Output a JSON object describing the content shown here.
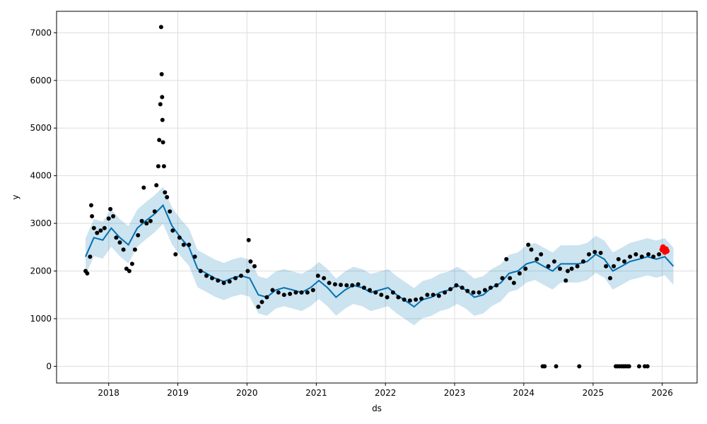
{
  "chart_data": {
    "type": "line",
    "xlabel": "ds",
    "ylabel": "y",
    "x_axis": {
      "type": "date",
      "range": [
        "2017-04-01",
        "2026-07-04"
      ]
    },
    "y_axis": {
      "range": [
        -350,
        7450
      ]
    },
    "grid": true,
    "x_ticks": [
      "2018",
      "2019",
      "2020",
      "2021",
      "2022",
      "2023",
      "2024",
      "2025",
      "2026"
    ],
    "y_ticks": [
      "0",
      "1000",
      "2000",
      "3000",
      "4000",
      "5000",
      "6000",
      "7000"
    ],
    "colors": {
      "observed": "#000000",
      "forecast": "#0072B2",
      "interval_fill": "#0072B2",
      "recent_points": "#FF0000",
      "grid": "#dddddd"
    },
    "series": [
      {
        "role": "forecast_yhat",
        "points": [
          [
            "2017-09-01",
            2300
          ],
          [
            "2017-10-15",
            2700
          ],
          [
            "2017-12-01",
            2650
          ],
          [
            "2018-01-15",
            2900
          ],
          [
            "2018-03-01",
            2700
          ],
          [
            "2018-04-15",
            2550
          ],
          [
            "2018-06-01",
            2900
          ],
          [
            "2018-07-15",
            3050
          ],
          [
            "2018-09-01",
            3200
          ],
          [
            "2018-10-15",
            3380
          ],
          [
            "2018-12-01",
            2950
          ],
          [
            "2019-01-15",
            2700
          ],
          [
            "2019-03-01",
            2500
          ],
          [
            "2019-04-15",
            2050
          ],
          [
            "2019-06-01",
            1950
          ],
          [
            "2019-07-15",
            1850
          ],
          [
            "2019-09-01",
            1780
          ],
          [
            "2019-10-15",
            1850
          ],
          [
            "2019-12-01",
            1900
          ],
          [
            "2020-01-15",
            1850
          ],
          [
            "2020-03-01",
            1500
          ],
          [
            "2020-04-15",
            1450
          ],
          [
            "2020-06-01",
            1600
          ],
          [
            "2020-07-15",
            1650
          ],
          [
            "2020-09-01",
            1600
          ],
          [
            "2020-10-15",
            1550
          ],
          [
            "2020-12-01",
            1650
          ],
          [
            "2021-01-15",
            1800
          ],
          [
            "2021-03-01",
            1650
          ],
          [
            "2021-04-15",
            1450
          ],
          [
            "2021-06-01",
            1600
          ],
          [
            "2021-07-15",
            1700
          ],
          [
            "2021-09-01",
            1650
          ],
          [
            "2021-10-15",
            1550
          ],
          [
            "2021-12-01",
            1600
          ],
          [
            "2022-01-15",
            1650
          ],
          [
            "2022-03-01",
            1500
          ],
          [
            "2022-04-15",
            1380
          ],
          [
            "2022-06-01",
            1250
          ],
          [
            "2022-07-15",
            1400
          ],
          [
            "2022-09-01",
            1450
          ],
          [
            "2022-10-15",
            1550
          ],
          [
            "2022-12-01",
            1600
          ],
          [
            "2023-01-15",
            1700
          ],
          [
            "2023-03-01",
            1600
          ],
          [
            "2023-04-15",
            1450
          ],
          [
            "2023-06-01",
            1500
          ],
          [
            "2023-07-15",
            1650
          ],
          [
            "2023-09-01",
            1750
          ],
          [
            "2023-10-15",
            1950
          ],
          [
            "2023-12-01",
            2000
          ],
          [
            "2024-01-15",
            2150
          ],
          [
            "2024-03-01",
            2200
          ],
          [
            "2024-04-15",
            2100
          ],
          [
            "2024-06-01",
            2000
          ],
          [
            "2024-07-15",
            2150
          ],
          [
            "2024-09-01",
            2150
          ],
          [
            "2024-10-15",
            2150
          ],
          [
            "2024-12-01",
            2200
          ],
          [
            "2025-01-15",
            2350
          ],
          [
            "2025-03-01",
            2250
          ],
          [
            "2025-04-15",
            2000
          ],
          [
            "2025-06-01",
            2100
          ],
          [
            "2025-07-15",
            2200
          ],
          [
            "2025-09-01",
            2250
          ],
          [
            "2025-10-15",
            2300
          ],
          [
            "2025-12-01",
            2250
          ],
          [
            "2026-01-15",
            2300
          ],
          [
            "2026-03-01",
            2100
          ]
        ]
      },
      {
        "role": "uncertainty_interval",
        "offsets_below_and_above_yhat": 390
      },
      {
        "role": "observed",
        "points": [
          [
            "2017-09-01",
            2000
          ],
          [
            "2017-09-10",
            1950
          ],
          [
            "2017-09-25",
            2300
          ],
          [
            "2017-10-01",
            3380
          ],
          [
            "2017-10-05",
            3150
          ],
          [
            "2017-10-15",
            2900
          ],
          [
            "2017-11-01",
            2800
          ],
          [
            "2017-11-20",
            2850
          ],
          [
            "2017-12-10",
            2900
          ],
          [
            "2018-01-01",
            3100
          ],
          [
            "2018-01-10",
            3300
          ],
          [
            "2018-01-25",
            3150
          ],
          [
            "2018-02-10",
            2700
          ],
          [
            "2018-03-01",
            2600
          ],
          [
            "2018-03-20",
            2450
          ],
          [
            "2018-04-05",
            2050
          ],
          [
            "2018-04-20",
            2000
          ],
          [
            "2018-05-05",
            2150
          ],
          [
            "2018-05-20",
            2450
          ],
          [
            "2018-06-05",
            2750
          ],
          [
            "2018-06-25",
            3050
          ],
          [
            "2018-07-05",
            3750
          ],
          [
            "2018-07-20",
            3000
          ],
          [
            "2018-08-10",
            3050
          ],
          [
            "2018-09-01",
            3250
          ],
          [
            "2018-09-10",
            3800
          ],
          [
            "2018-09-20",
            4200
          ],
          [
            "2018-09-25",
            4750
          ],
          [
            "2018-10-01",
            5500
          ],
          [
            "2018-10-05",
            7120
          ],
          [
            "2018-10-08",
            6130
          ],
          [
            "2018-10-10",
            5650
          ],
          [
            "2018-10-12",
            5170
          ],
          [
            "2018-10-15",
            4700
          ],
          [
            "2018-10-20",
            4200
          ],
          [
            "2018-10-25",
            3650
          ],
          [
            "2018-11-05",
            3550
          ],
          [
            "2018-11-20",
            3250
          ],
          [
            "2018-12-05",
            2850
          ],
          [
            "2018-12-20",
            2350
          ],
          [
            "2019-01-10",
            2700
          ],
          [
            "2019-02-01",
            2550
          ],
          [
            "2019-03-01",
            2550
          ],
          [
            "2019-04-01",
            2300
          ],
          [
            "2019-05-01",
            2000
          ],
          [
            "2019-06-01",
            1900
          ],
          [
            "2019-07-01",
            1850
          ],
          [
            "2019-08-01",
            1800
          ],
          [
            "2019-09-01",
            1750
          ],
          [
            "2019-10-01",
            1780
          ],
          [
            "2019-11-01",
            1850
          ],
          [
            "2019-12-01",
            1900
          ],
          [
            "2020-01-05",
            2000
          ],
          [
            "2020-01-10",
            2650
          ],
          [
            "2020-01-20",
            2200
          ],
          [
            "2020-02-10",
            2100
          ],
          [
            "2020-03-01",
            1250
          ],
          [
            "2020-03-20",
            1350
          ],
          [
            "2020-04-15",
            1450
          ],
          [
            "2020-05-15",
            1600
          ],
          [
            "2020-06-15",
            1550
          ],
          [
            "2020-07-15",
            1500
          ],
          [
            "2020-08-15",
            1520
          ],
          [
            "2020-09-15",
            1550
          ],
          [
            "2020-10-15",
            1550
          ],
          [
            "2020-11-15",
            1550
          ],
          [
            "2020-12-15",
            1600
          ],
          [
            "2021-01-10",
            1900
          ],
          [
            "2021-02-10",
            1850
          ],
          [
            "2021-03-10",
            1750
          ],
          [
            "2021-04-10",
            1720
          ],
          [
            "2021-05-10",
            1710
          ],
          [
            "2021-06-10",
            1700
          ],
          [
            "2021-07-10",
            1700
          ],
          [
            "2021-08-10",
            1720
          ],
          [
            "2021-09-10",
            1650
          ],
          [
            "2021-10-10",
            1600
          ],
          [
            "2021-11-10",
            1550
          ],
          [
            "2021-12-10",
            1500
          ],
          [
            "2022-01-10",
            1450
          ],
          [
            "2022-02-10",
            1550
          ],
          [
            "2022-03-10",
            1450
          ],
          [
            "2022-04-10",
            1400
          ],
          [
            "2022-05-10",
            1380
          ],
          [
            "2022-06-10",
            1400
          ],
          [
            "2022-07-10",
            1420
          ],
          [
            "2022-08-10",
            1500
          ],
          [
            "2022-09-10",
            1500
          ],
          [
            "2022-10-10",
            1480
          ],
          [
            "2022-11-10",
            1550
          ],
          [
            "2022-12-10",
            1620
          ],
          [
            "2023-01-10",
            1700
          ],
          [
            "2023-02-10",
            1650
          ],
          [
            "2023-03-10",
            1580
          ],
          [
            "2023-04-10",
            1550
          ],
          [
            "2023-05-10",
            1550
          ],
          [
            "2023-06-10",
            1600
          ],
          [
            "2023-07-10",
            1650
          ],
          [
            "2023-08-10",
            1700
          ],
          [
            "2023-09-10",
            1850
          ],
          [
            "2023-10-01",
            2250
          ],
          [
            "2023-10-20",
            1850
          ],
          [
            "2023-11-10",
            1750
          ],
          [
            "2023-12-10",
            1950
          ],
          [
            "2024-01-10",
            2050
          ],
          [
            "2024-01-25",
            2550
          ],
          [
            "2024-02-10",
            2450
          ],
          [
            "2024-03-10",
            2250
          ],
          [
            "2024-04-01",
            2350
          ],
          [
            "2024-04-10",
            0
          ],
          [
            "2024-04-20",
            0
          ],
          [
            "2024-05-10",
            2100
          ],
          [
            "2024-06-10",
            2200
          ],
          [
            "2024-06-20",
            0
          ],
          [
            "2024-07-10",
            2050
          ],
          [
            "2024-08-10",
            1800
          ],
          [
            "2024-08-20",
            2000
          ],
          [
            "2024-09-10",
            2050
          ],
          [
            "2024-10-10",
            2100
          ],
          [
            "2024-10-20",
            0
          ],
          [
            "2024-11-10",
            2200
          ],
          [
            "2024-12-10",
            2350
          ],
          [
            "2025-01-10",
            2400
          ],
          [
            "2025-02-10",
            2380
          ],
          [
            "2025-03-10",
            2100
          ],
          [
            "2025-04-01",
            1850
          ],
          [
            "2025-04-20",
            2100
          ],
          [
            "2025-05-01",
            0
          ],
          [
            "2025-05-10",
            0
          ],
          [
            "2025-05-20",
            0
          ],
          [
            "2025-06-01",
            0
          ],
          [
            "2025-06-10",
            0
          ],
          [
            "2025-06-20",
            0
          ],
          [
            "2025-07-01",
            0
          ],
          [
            "2025-07-10",
            0
          ],
          [
            "2025-05-15",
            2250
          ],
          [
            "2025-06-15",
            2200
          ],
          [
            "2025-07-15",
            2300
          ],
          [
            "2025-08-15",
            2350
          ],
          [
            "2025-09-01",
            0
          ],
          [
            "2025-09-15",
            2300
          ],
          [
            "2025-10-01",
            0
          ],
          [
            "2025-10-15",
            0
          ],
          [
            "2025-10-20",
            2350
          ],
          [
            "2025-11-15",
            2300
          ],
          [
            "2025-12-15",
            2350
          ]
        ]
      },
      {
        "role": "recent_points",
        "points": [
          [
            "2026-01-01",
            2450
          ],
          [
            "2026-01-05",
            2500
          ],
          [
            "2026-01-10",
            2430
          ],
          [
            "2026-01-15",
            2400
          ],
          [
            "2026-01-20",
            2460
          ],
          [
            "2026-01-25",
            2420
          ]
        ]
      }
    ]
  }
}
